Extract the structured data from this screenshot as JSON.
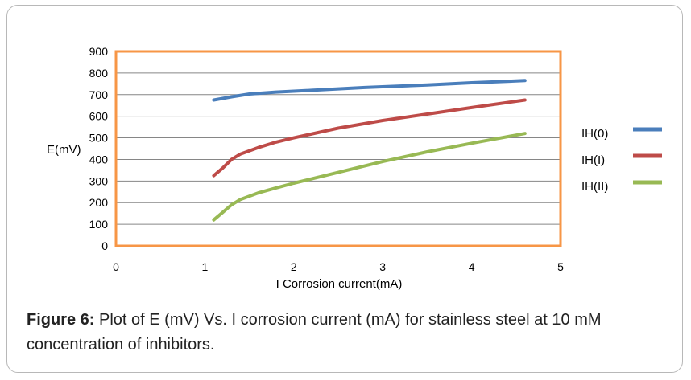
{
  "chart_data": {
    "type": "line",
    "ylabel": "E(mV)",
    "xlabel": "I Corrosion current(mA)",
    "xlim": [
      0,
      5
    ],
    "ylim": [
      0,
      900
    ],
    "xticks": [
      "0",
      "1",
      "2",
      "3",
      "4",
      "5"
    ],
    "yticks": [
      "0",
      "100",
      "200",
      "300",
      "400",
      "500",
      "600",
      "700",
      "800",
      "900"
    ],
    "grid": true,
    "legend": "right",
    "series": [
      {
        "name": "IH(0)",
        "color": "#4a7ebb",
        "x": [
          1.1,
          1.3,
          1.5,
          1.8,
          2.2,
          2.8,
          3.5,
          4.0,
          4.6
        ],
        "y": [
          675,
          690,
          703,
          712,
          720,
          733,
          745,
          755,
          765
        ]
      },
      {
        "name": "IH(I)",
        "color": "#be4b48",
        "x": [
          1.1,
          1.2,
          1.3,
          1.4,
          1.6,
          1.8,
          2.0,
          2.5,
          3.0,
          3.5,
          4.0,
          4.6
        ],
        "y": [
          325,
          360,
          400,
          425,
          455,
          480,
          500,
          545,
          580,
          610,
          640,
          675
        ]
      },
      {
        "name": "IH(II)",
        "color": "#98b954",
        "x": [
          1.1,
          1.2,
          1.3,
          1.4,
          1.6,
          1.8,
          2.0,
          2.5,
          3.0,
          3.5,
          4.0,
          4.6
        ],
        "y": [
          120,
          155,
          190,
          215,
          245,
          268,
          290,
          340,
          390,
          435,
          475,
          520
        ]
      }
    ]
  },
  "caption": {
    "label": "Figure 6:",
    "text": " Plot of E (mV) Vs. I corrosion current (mA) for stainless steel at 10 mM concentration of inhibitors."
  },
  "colors": {
    "plot_border": "#f79646",
    "gridline": "#868686"
  }
}
